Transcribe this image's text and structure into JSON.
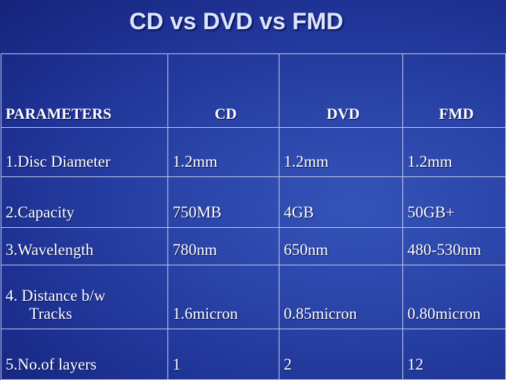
{
  "title": "CD vs DVD vs FMD",
  "table": {
    "headers": [
      "PARAMETERS",
      "CD",
      "DVD",
      "FMD"
    ],
    "rows": [
      [
        "1.Disc Diameter",
        "1.2mm",
        "1.2mm",
        "1.2mm"
      ],
      [
        "2.Capacity",
        "750MB",
        "4GB",
        "50GB+"
      ],
      [
        "3.Wavelength",
        "780nm",
        "650nm",
        "480-530nm"
      ],
      [
        "4. Distance b/w",
        "1.6micron",
        "0.85micron",
        "0.80micron"
      ],
      [
        "5.No.of layers",
        "1",
        "2",
        "12"
      ]
    ],
    "row4_label_line2": "Tracks"
  },
  "colors": {
    "background": "#2a44a8",
    "grid": "#c9d2ee",
    "text": "#ffffff"
  }
}
